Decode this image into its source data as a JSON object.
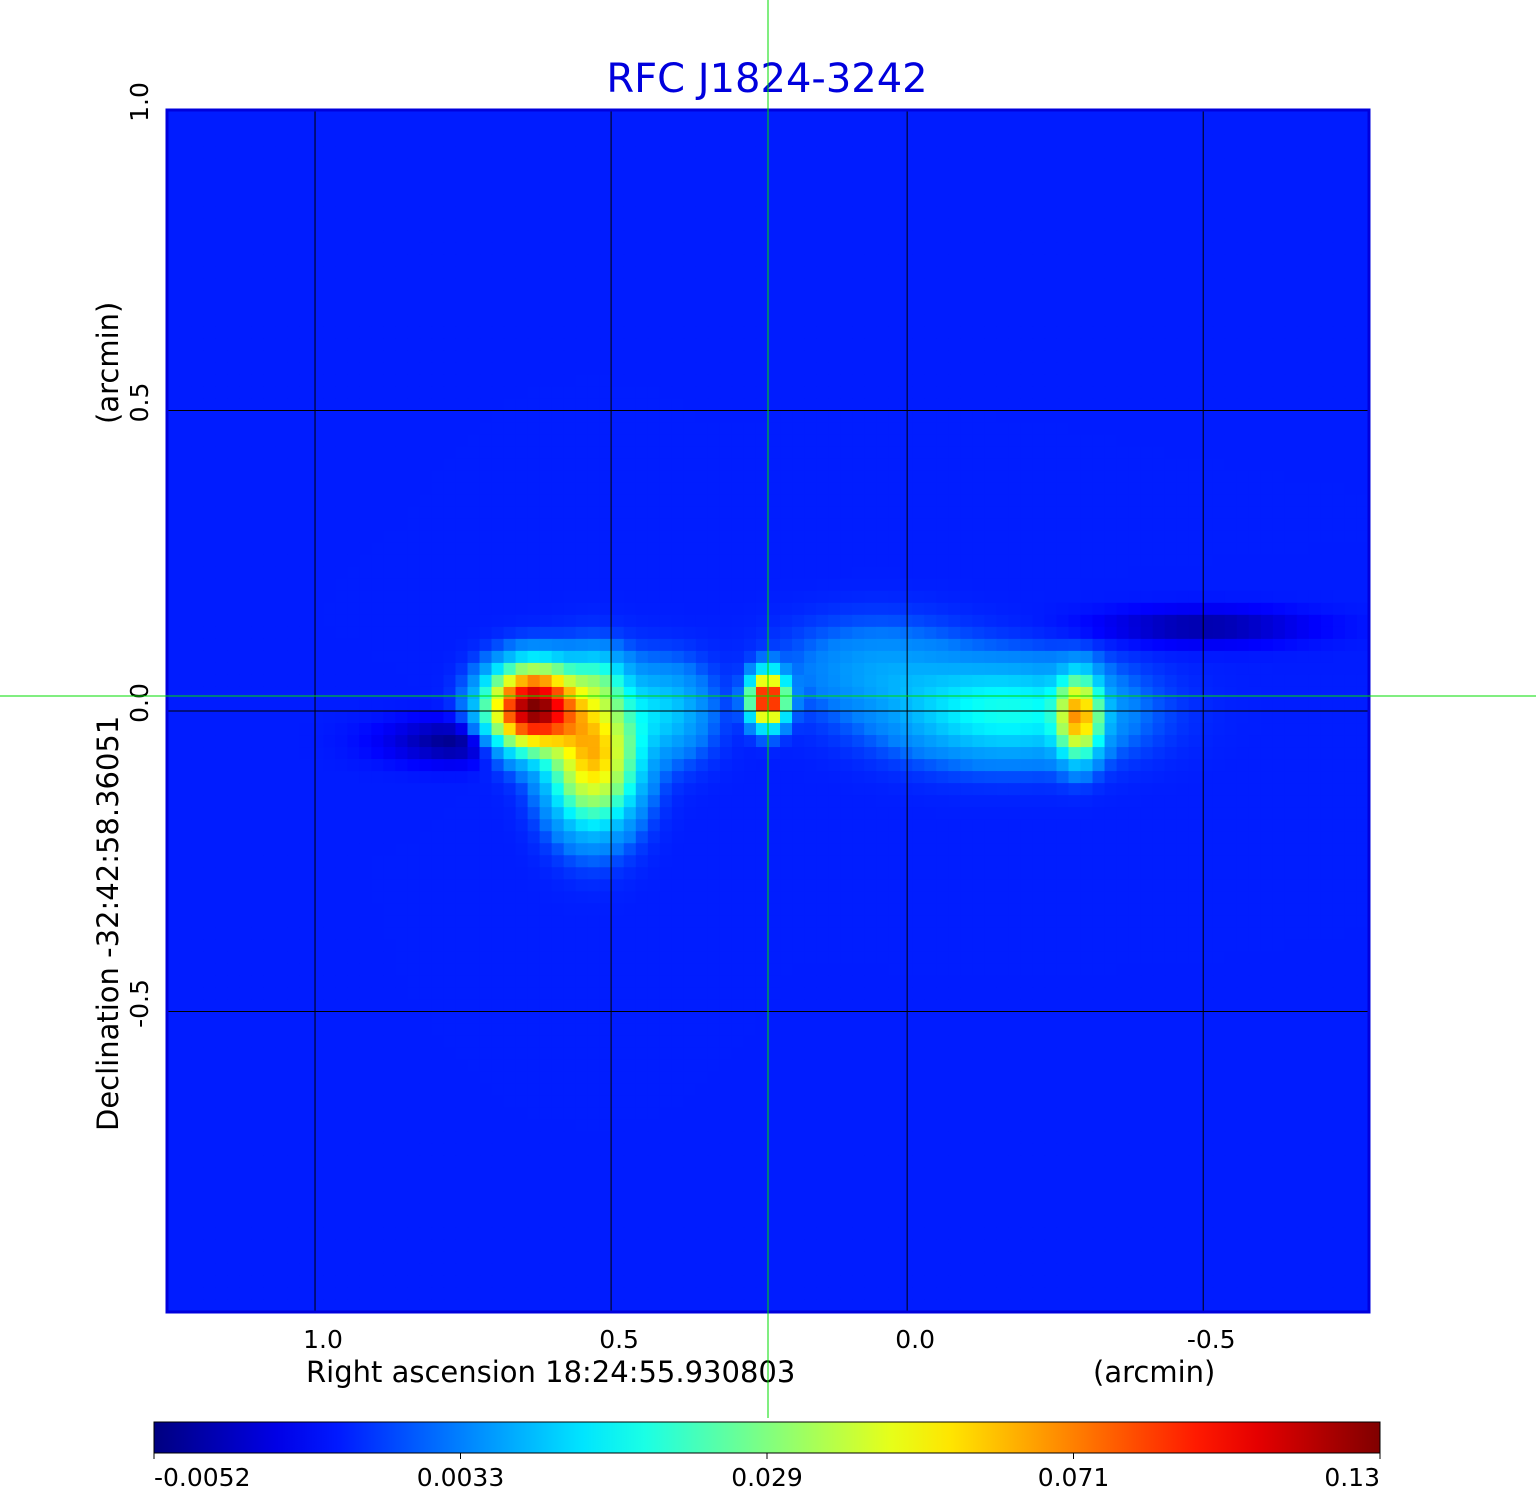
{
  "chart_data": {
    "type": "heatmap",
    "title": "RFC J1824-3242",
    "xlabel": "Right ascension  18:24:55.930803",
    "xunit": "(arcmin)",
    "ylabel": "Declination  -32:42:58.36051",
    "yunit": "(arcmin)",
    "x_ticks": [
      "1.0",
      "0.5",
      "0.0",
      "-0.5"
    ],
    "x_tick_values": [
      1.0,
      0.5,
      0.0,
      -0.5
    ],
    "y_ticks": [
      "1.0",
      "0.5",
      "0.0",
      "-0.5"
    ],
    "y_tick_values": [
      1.0,
      0.5,
      0.0,
      -0.5
    ],
    "xlim": [
      1.25,
      -0.78
    ],
    "ylim": [
      -1.0,
      1.0
    ],
    "grid": true,
    "crosshair": {
      "x": 0.235,
      "y": 0.025,
      "color": "#00dd00"
    },
    "colorbar": {
      "colormap": "jet",
      "tick_labels": [
        "-0.0052",
        "0.0033",
        "0.029",
        "0.071",
        "0.13"
      ],
      "min": -0.0052,
      "max": 0.13
    },
    "background_level": 0.0,
    "features": [
      {
        "name": "core",
        "x": 0.63,
        "y": 0.005,
        "peak": 0.13,
        "sx": 0.045,
        "sy": 0.04
      },
      {
        "name": "core-extension",
        "x": 0.53,
        "y": -0.07,
        "peak": 0.062,
        "sx": 0.045,
        "sy": 0.07
      },
      {
        "name": "knot-upper",
        "x": 0.52,
        "y": 0.05,
        "peak": 0.012,
        "sx": 0.03,
        "sy": 0.03
      },
      {
        "name": "bridge-1",
        "x": 0.41,
        "y": 0.0,
        "peak": 0.011,
        "sx": 0.05,
        "sy": 0.05
      },
      {
        "name": "knot-center",
        "x": 0.235,
        "y": 0.02,
        "peak": 0.11,
        "sx": 0.018,
        "sy": 0.025
      },
      {
        "name": "bridge-2",
        "x": 0.05,
        "y": 0.07,
        "peak": 0.006,
        "sx": 0.1,
        "sy": 0.05
      },
      {
        "name": "lobe-west",
        "x": -0.17,
        "y": 0.0,
        "peak": 0.018,
        "sx": 0.12,
        "sy": 0.05
      },
      {
        "name": "hotspot-west",
        "x": -0.29,
        "y": -0.01,
        "peak": 0.06,
        "sx": 0.022,
        "sy": 0.04
      },
      {
        "name": "negative-east",
        "x": 0.74,
        "y": -0.05,
        "peak": -0.0052,
        "sx": 0.09,
        "sy": 0.025
      },
      {
        "name": "negative-northwest",
        "x": -0.5,
        "y": 0.14,
        "peak": -0.004,
        "sx": 0.12,
        "sy": 0.02
      }
    ]
  }
}
